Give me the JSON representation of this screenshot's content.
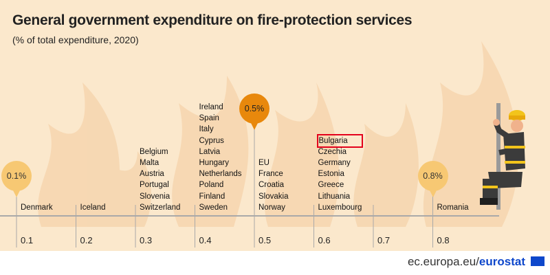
{
  "title": "General government expenditure on fire-protection services",
  "subtitle": "(% of total expenditure, 2020)",
  "footer": {
    "prefix": "ec.europa.eu/",
    "brand": "eurostat"
  },
  "colors": {
    "background": "#fbe8cc",
    "flame": "#f5d3ab",
    "bubble_light": "#f7c873",
    "bubble_dark": "#e8880c",
    "highlight": "#e3001b",
    "axis": "#a9a9a9"
  },
  "icons": [
    "eu-flag-icon",
    "firefighter-illustration"
  ],
  "chart_data": {
    "type": "scatter",
    "title": "General government expenditure on fire-protection services",
    "subtitle": "(% of total expenditure, 2020)",
    "xlim": [
      0.1,
      0.8
    ],
    "ticks": [
      "0.1",
      "0.2",
      "0.3",
      "0.4",
      "0.5",
      "0.6",
      "0.7",
      "0.8"
    ],
    "groups": [
      {
        "value": 0.1,
        "countries": [
          "Denmark"
        ],
        "bubble": "0.1%"
      },
      {
        "value": 0.2,
        "countries": [
          "Iceland"
        ]
      },
      {
        "value": 0.3,
        "countries": [
          "Belgium",
          "Malta",
          "Austria",
          "Portugal",
          "Slovenia",
          "Switzerland"
        ]
      },
      {
        "value": 0.4,
        "countries": [
          "Ireland",
          "Spain",
          "Italy",
          "Cyprus",
          "Latvia",
          "Hungary",
          "Netherlands",
          "Poland",
          "Finland",
          "Sweden"
        ]
      },
      {
        "value": 0.5,
        "countries": [
          "EU",
          "France",
          "Croatia",
          "Slovakia",
          "Norway"
        ],
        "bubble": "0.5%"
      },
      {
        "value": 0.6,
        "countries": [
          "Bulgaria",
          "Czechia",
          "Germany",
          "Estonia",
          "Greece",
          "Lithuania",
          "Luxembourg"
        ]
      },
      {
        "value": 0.7,
        "countries": []
      },
      {
        "value": 0.8,
        "countries": [
          "Romania"
        ],
        "bubble": "0.8%"
      }
    ],
    "highlighted": "Bulgaria"
  }
}
